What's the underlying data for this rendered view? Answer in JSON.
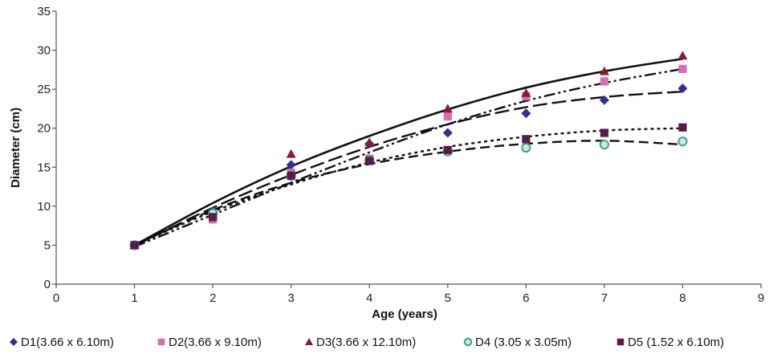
{
  "chart_data": {
    "type": "scatter",
    "title": "",
    "xlabel": "Age (years)",
    "ylabel": "Diameter (cm)",
    "xlim": [
      0,
      9
    ],
    "ylim": [
      0,
      35
    ],
    "xticks": [
      "0",
      "1",
      "2",
      "3",
      "4",
      "5",
      "6",
      "7",
      "8",
      "9"
    ],
    "yticks": [
      "0",
      "5",
      "10",
      "15",
      "20",
      "25",
      "30",
      "35"
    ],
    "grid": false,
    "legend_position": "bottom",
    "x": [
      1,
      2,
      3,
      4,
      5,
      6,
      7,
      8
    ],
    "series": [
      {
        "name": "D1(3.66 x 6.10m)",
        "marker": "diamond",
        "color": "#2e3192",
        "line_style": "long-dash",
        "values": [
          5.0,
          9.3,
          15.3,
          18.0,
          19.4,
          21.9,
          23.6,
          25.1
        ],
        "trend": [
          4.9,
          9.8,
          14.0,
          17.6,
          20.5,
          22.7,
          24.0,
          24.7
        ]
      },
      {
        "name": "D2(3.66 x 9.10m)",
        "marker": "square",
        "color": "#d66fb0",
        "line_style": "dash-dot-dot",
        "values": [
          5.0,
          8.3,
          14.3,
          16.1,
          21.5,
          24.1,
          26.0,
          27.6
        ],
        "trend": [
          4.8,
          8.9,
          13.0,
          16.9,
          20.5,
          23.5,
          25.8,
          27.6
        ]
      },
      {
        "name": "D3(3.66 x 12.10m)",
        "marker": "triangle",
        "color": "#8b1c2b",
        "line_style": "solid",
        "values": [
          5.0,
          9.0,
          16.7,
          18.2,
          22.5,
          24.5,
          27.3,
          29.3
        ],
        "trend": [
          5.0,
          10.4,
          15.1,
          19.0,
          22.4,
          25.2,
          27.3,
          28.9
        ]
      },
      {
        "name": "D4 (3.05 x 3.05m)",
        "marker": "circle",
        "color": "#3aa38f",
        "line_style": "dashed",
        "values": [
          5.0,
          9.1,
          13.9,
          15.9,
          17.0,
          17.5,
          17.9,
          18.3
        ],
        "trend": [
          5.0,
          9.5,
          13.0,
          15.4,
          17.0,
          18.0,
          18.4,
          17.9
        ]
      },
      {
        "name": "D5 (1.52 x 6.10m)",
        "marker": "square",
        "color": "#5b1a4d",
        "line_style": "dotted",
        "values": [
          5.0,
          8.6,
          13.9,
          15.8,
          17.2,
          18.6,
          19.4,
          20.1
        ],
        "trend": [
          5.0,
          9.3,
          12.8,
          15.6,
          17.6,
          18.9,
          19.7,
          20.0
        ]
      }
    ]
  }
}
